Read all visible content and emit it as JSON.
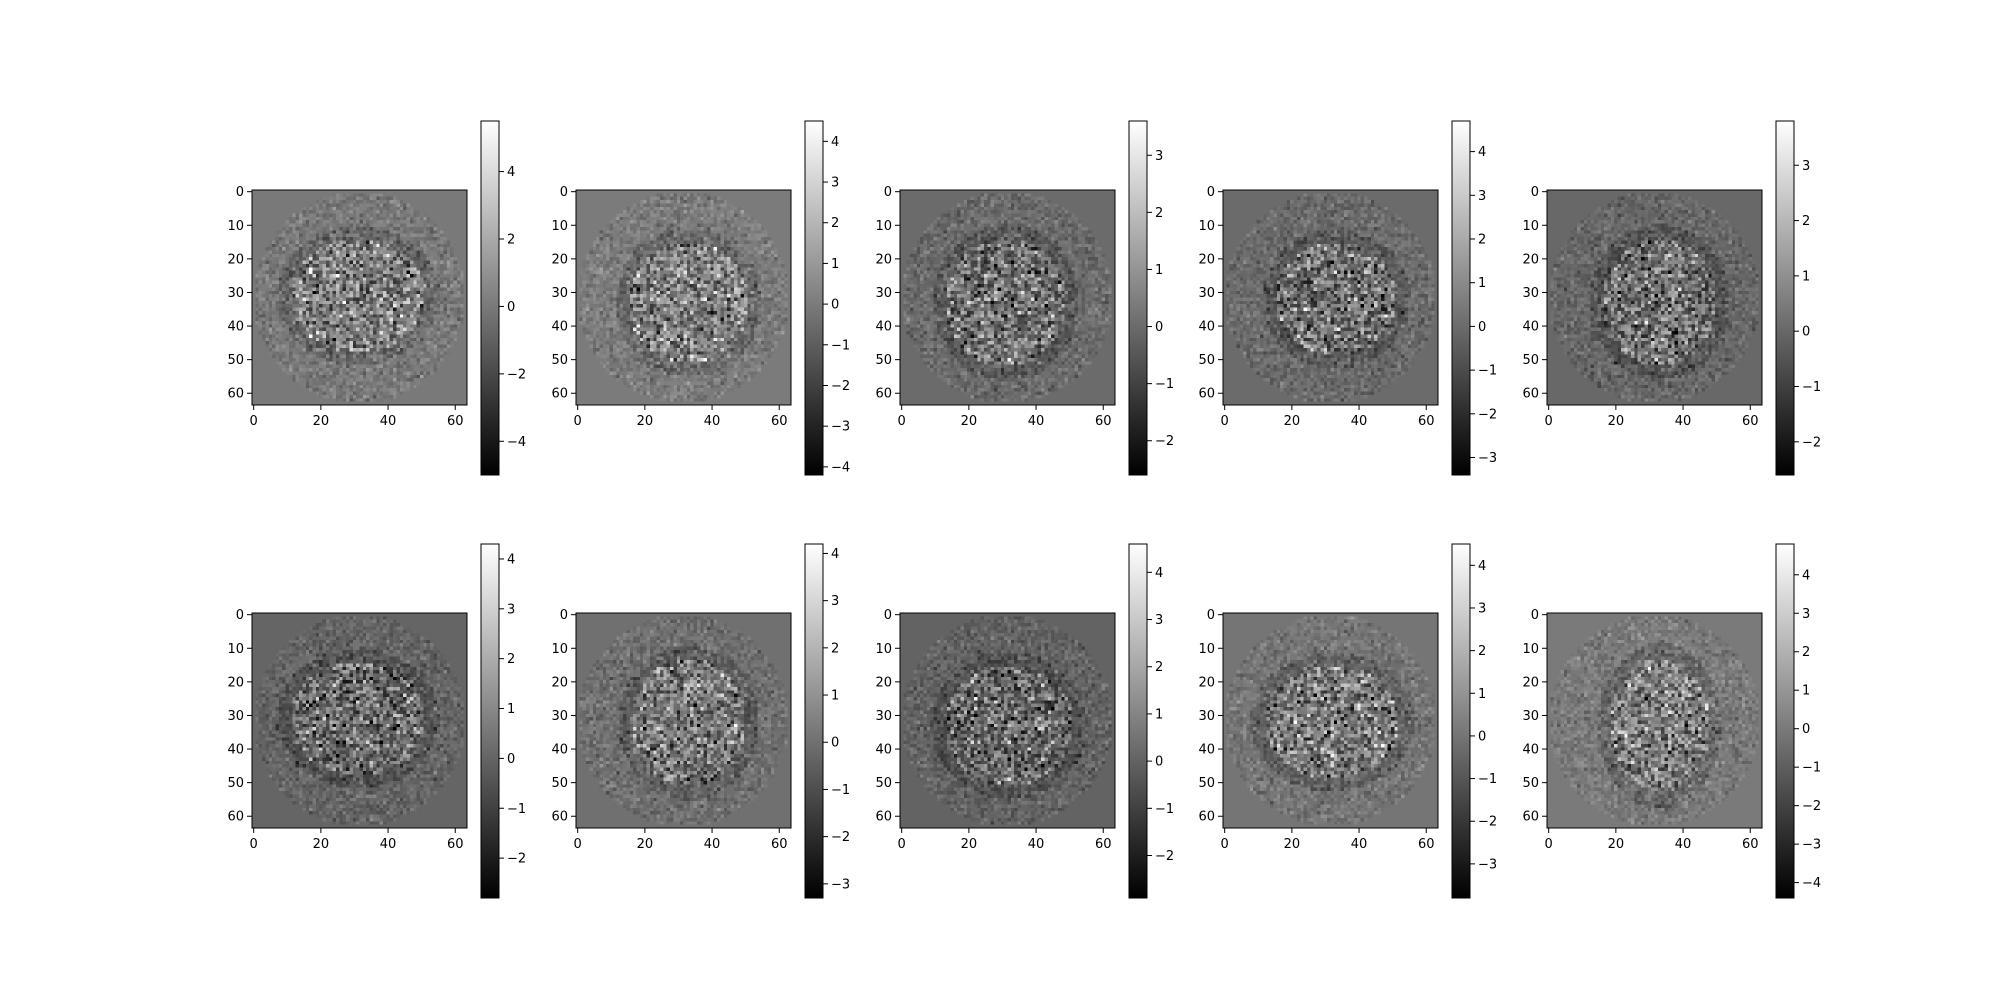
{
  "chart_data": {
    "type": "heatmap",
    "colormap": "gray",
    "image_size": [
      64,
      64
    ],
    "grid": false,
    "layout": "2 rows x 5 columns, each image with its own vertical colorbar to the right",
    "panels": [
      {
        "xlim": [
          0,
          63
        ],
        "ylim": [
          63,
          0
        ],
        "xticks": [
          "0",
          "20",
          "40",
          "60"
        ],
        "yticks": [
          "0",
          "10",
          "20",
          "30",
          "40",
          "50",
          "60"
        ],
        "vmin": -5.0,
        "vmax": 5.5,
        "colorbar_ticks": [
          {
            "value": 4,
            "label": "4"
          },
          {
            "value": 2,
            "label": "2"
          },
          {
            "value": 0,
            "label": "0"
          },
          {
            "value": -2,
            "label": "−2"
          },
          {
            "value": -4,
            "label": "−4"
          }
        ],
        "blob": {
          "cx": 31,
          "cy": 31,
          "rx": 20,
          "ry": 17
        },
        "seed": 11
      },
      {
        "xlim": [
          0,
          63
        ],
        "ylim": [
          63,
          0
        ],
        "xticks": [
          "0",
          "20",
          "40",
          "60"
        ],
        "yticks": [
          "0",
          "10",
          "20",
          "30",
          "40",
          "50",
          "60"
        ],
        "vmin": -4.2,
        "vmax": 4.5,
        "colorbar_ticks": [
          {
            "value": 4,
            "label": "4"
          },
          {
            "value": 3,
            "label": "3"
          },
          {
            "value": 2,
            "label": "2"
          },
          {
            "value": 1,
            "label": "1"
          },
          {
            "value": 0,
            "label": "0"
          },
          {
            "value": -1,
            "label": "−1"
          },
          {
            "value": -2,
            "label": "−2"
          },
          {
            "value": -3,
            "label": "−3"
          },
          {
            "value": -4,
            "label": "−4"
          }
        ],
        "blob": {
          "cx": 33,
          "cy": 33,
          "rx": 18,
          "ry": 18
        },
        "seed": 23
      },
      {
        "xlim": [
          0,
          63
        ],
        "ylim": [
          63,
          0
        ],
        "xticks": [
          "0",
          "20",
          "40",
          "60"
        ],
        "yticks": [
          "0",
          "10",
          "20",
          "30",
          "40",
          "50",
          "60"
        ],
        "vmin": -2.6,
        "vmax": 3.6,
        "colorbar_ticks": [
          {
            "value": 3,
            "label": "3"
          },
          {
            "value": 2,
            "label": "2"
          },
          {
            "value": 1,
            "label": "1"
          },
          {
            "value": 0,
            "label": "0"
          },
          {
            "value": -1,
            "label": "−1"
          },
          {
            "value": -2,
            "label": "−2"
          }
        ],
        "blob": {
          "cx": 31,
          "cy": 33,
          "rx": 18,
          "ry": 19
        },
        "seed": 37
      },
      {
        "xlim": [
          0,
          63
        ],
        "ylim": [
          63,
          0
        ],
        "xticks": [
          "0",
          "20",
          "40",
          "60"
        ],
        "yticks": [
          "0",
          "10",
          "20",
          "30",
          "40",
          "50",
          "60"
        ],
        "vmin": -3.4,
        "vmax": 4.7,
        "colorbar_ticks": [
          {
            "value": 4,
            "label": "4"
          },
          {
            "value": 3,
            "label": "3"
          },
          {
            "value": 2,
            "label": "2"
          },
          {
            "value": 1,
            "label": "1"
          },
          {
            "value": 0,
            "label": "0"
          },
          {
            "value": -1,
            "label": "−1"
          },
          {
            "value": -2,
            "label": "−2"
          },
          {
            "value": -3,
            "label": "−3"
          }
        ],
        "blob": {
          "cx": 33,
          "cy": 32,
          "rx": 18,
          "ry": 17
        },
        "seed": 41
      },
      {
        "xlim": [
          0,
          63
        ],
        "ylim": [
          63,
          0
        ],
        "xticks": [
          "0",
          "20",
          "40",
          "60"
        ],
        "yticks": [
          "0",
          "10",
          "20",
          "30",
          "40",
          "50",
          "60"
        ],
        "vmin": -2.6,
        "vmax": 3.8,
        "colorbar_ticks": [
          {
            "value": 3,
            "label": "3"
          },
          {
            "value": 2,
            "label": "2"
          },
          {
            "value": 1,
            "label": "1"
          },
          {
            "value": 0,
            "label": "0"
          },
          {
            "value": -1,
            "label": "−1"
          },
          {
            "value": -2,
            "label": "−2"
          }
        ],
        "blob": {
          "cx": 33,
          "cy": 33,
          "rx": 17,
          "ry": 19
        },
        "seed": 53
      },
      {
        "xlim": [
          0,
          63
        ],
        "ylim": [
          63,
          0
        ],
        "xticks": [
          "0",
          "20",
          "40",
          "60"
        ],
        "yticks": [
          "0",
          "10",
          "20",
          "30",
          "40",
          "50",
          "60"
        ],
        "vmin": -2.8,
        "vmax": 4.3,
        "colorbar_ticks": [
          {
            "value": 4,
            "label": "4"
          },
          {
            "value": 3,
            "label": "3"
          },
          {
            "value": 2,
            "label": "2"
          },
          {
            "value": 1,
            "label": "1"
          },
          {
            "value": 0,
            "label": "0"
          },
          {
            "value": -1,
            "label": "−1"
          },
          {
            "value": -2,
            "label": "−2"
          }
        ],
        "blob": {
          "cx": 31,
          "cy": 31,
          "rx": 20,
          "ry": 17
        },
        "seed": 61
      },
      {
        "xlim": [
          0,
          63
        ],
        "ylim": [
          63,
          0
        ],
        "xticks": [
          "0",
          "20",
          "40",
          "60"
        ],
        "yticks": [
          "0",
          "10",
          "20",
          "30",
          "40",
          "50",
          "60"
        ],
        "vmin": -3.3,
        "vmax": 4.2,
        "colorbar_ticks": [
          {
            "value": 4,
            "label": "4"
          },
          {
            "value": 3,
            "label": "3"
          },
          {
            "value": 2,
            "label": "2"
          },
          {
            "value": 1,
            "label": "1"
          },
          {
            "value": 0,
            "label": "0"
          },
          {
            "value": -1,
            "label": "−1"
          },
          {
            "value": -2,
            "label": "−2"
          },
          {
            "value": -3,
            "label": "−3"
          }
        ],
        "blob": {
          "cx": 33,
          "cy": 32,
          "rx": 17,
          "ry": 19
        },
        "seed": 73
      },
      {
        "xlim": [
          0,
          63
        ],
        "ylim": [
          63,
          0
        ],
        "xticks": [
          "0",
          "20",
          "40",
          "60"
        ],
        "yticks": [
          "0",
          "10",
          "20",
          "30",
          "40",
          "50",
          "60"
        ],
        "vmin": -2.9,
        "vmax": 4.6,
        "colorbar_ticks": [
          {
            "value": 4,
            "label": "4"
          },
          {
            "value": 3,
            "label": "3"
          },
          {
            "value": 2,
            "label": "2"
          },
          {
            "value": 1,
            "label": "1"
          },
          {
            "value": 0,
            "label": "0"
          },
          {
            "value": -1,
            "label": "−1"
          },
          {
            "value": -2,
            "label": "−2"
          }
        ],
        "blob": {
          "cx": 32,
          "cy": 33,
          "rx": 19,
          "ry": 18
        },
        "seed": 89
      },
      {
        "xlim": [
          0,
          63
        ],
        "ylim": [
          63,
          0
        ],
        "xticks": [
          "0",
          "20",
          "40",
          "60"
        ],
        "yticks": [
          "0",
          "10",
          "20",
          "30",
          "40",
          "50",
          "60"
        ],
        "vmin": -3.8,
        "vmax": 4.5,
        "colorbar_ticks": [
          {
            "value": 4,
            "label": "4"
          },
          {
            "value": 3,
            "label": "3"
          },
          {
            "value": 2,
            "label": "2"
          },
          {
            "value": 1,
            "label": "1"
          },
          {
            "value": 0,
            "label": "0"
          },
          {
            "value": -1,
            "label": "−1"
          },
          {
            "value": -2,
            "label": "−2"
          },
          {
            "value": -3,
            "label": "−3"
          }
        ],
        "blob": {
          "cx": 32,
          "cy": 32,
          "rx": 20,
          "ry": 17
        },
        "seed": 97
      },
      {
        "xlim": [
          0,
          63
        ],
        "ylim": [
          63,
          0
        ],
        "xticks": [
          "0",
          "20",
          "40",
          "60"
        ],
        "yticks": [
          "0",
          "10",
          "20",
          "30",
          "40",
          "50",
          "60"
        ],
        "vmin": -4.4,
        "vmax": 4.8,
        "colorbar_ticks": [
          {
            "value": 4,
            "label": "4"
          },
          {
            "value": 3,
            "label": "3"
          },
          {
            "value": 2,
            "label": "2"
          },
          {
            "value": 1,
            "label": "1"
          },
          {
            "value": 0,
            "label": "0"
          },
          {
            "value": -1,
            "label": "−1"
          },
          {
            "value": -2,
            "label": "−2"
          },
          {
            "value": -3,
            "label": "−3"
          },
          {
            "value": -4,
            "label": "−4"
          }
        ],
        "blob": {
          "cx": 33,
          "cy": 33,
          "rx": 15,
          "ry": 20
        },
        "seed": 107
      }
    ]
  }
}
